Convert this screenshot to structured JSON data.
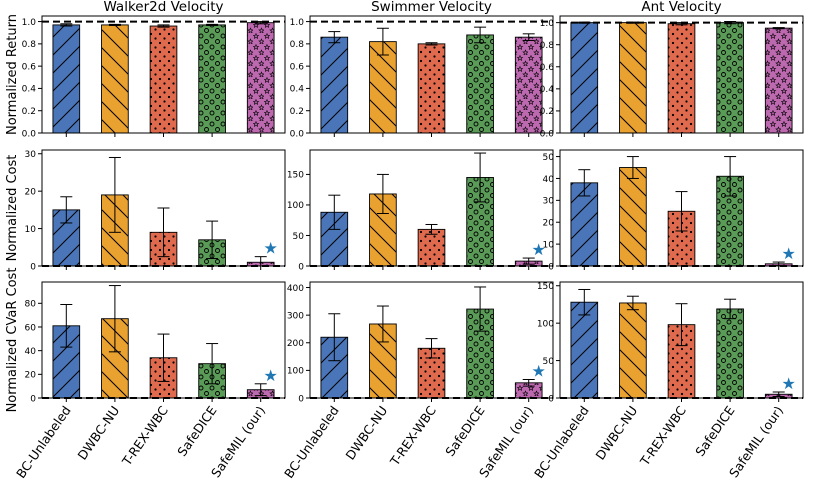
{
  "chart_data": {
    "type": "bar",
    "categories": [
      "BC-Unlabeled",
      "DWBC-NU",
      "T-REX-WBC",
      "SafeDICE",
      "SafeMIL (our)"
    ],
    "colors": [
      "#4a76b9",
      "#e9a130",
      "#df6a4e",
      "#5a9b58",
      "#bd69b0"
    ],
    "hatch_names": [
      "diagonal",
      "back-diagonal",
      "dots",
      "circles",
      "stars"
    ],
    "row_labels": [
      "Normalized Return",
      "Normalized Cost",
      "Normalized CVaR Cost"
    ],
    "marker": "★",
    "panels": [
      {
        "row": 0,
        "col": 0,
        "title": "Walker2d Velocity",
        "ylim": [
          0,
          1.05
        ],
        "ticks": [
          "0.0",
          "0.2",
          "0.4",
          "0.6",
          "0.8",
          "1.0"
        ],
        "tick_values": [
          0,
          0.2,
          0.4,
          0.6,
          0.8,
          1.0
        ],
        "values": [
          0.97,
          0.97,
          0.96,
          0.97,
          0.99
        ],
        "errors": [
          0.01,
          0.005,
          0.01,
          0.005,
          0.01
        ],
        "reference": 1.0,
        "best": -1
      },
      {
        "row": 0,
        "col": 1,
        "title": "Swimmer Velocity",
        "ylim": [
          0,
          1.05
        ],
        "ticks": [
          "0.0",
          "0.2",
          "0.4",
          "0.6",
          "0.8",
          "1.0"
        ],
        "tick_values": [
          0,
          0.2,
          0.4,
          0.6,
          0.8,
          1.0
        ],
        "values": [
          0.86,
          0.82,
          0.8,
          0.88,
          0.86
        ],
        "errors": [
          0.05,
          0.12,
          0.01,
          0.07,
          0.03
        ],
        "reference": 1.0,
        "best": -1
      },
      {
        "row": 0,
        "col": 2,
        "title": "Ant Velocity",
        "ylim": [
          0,
          1.06
        ],
        "ticks": [
          "0.0",
          "0.2",
          "0.4",
          "0.6",
          "0.8",
          "1.0"
        ],
        "tick_values": [
          0,
          0.2,
          0.4,
          0.6,
          0.8,
          1.0
        ],
        "values": [
          1.0,
          1.0,
          0.99,
          1.0,
          0.95
        ],
        "errors": [
          0.005,
          0.005,
          0.01,
          0.01,
          0.005
        ],
        "reference": 1.0,
        "best": -1
      },
      {
        "row": 1,
        "col": 0,
        "title": "",
        "ylim": [
          0,
          31
        ],
        "ticks": [
          "0",
          "10",
          "20",
          "30"
        ],
        "tick_values": [
          0,
          10,
          20,
          30
        ],
        "values": [
          15,
          19,
          9,
          7,
          1
        ],
        "errors": [
          3.5,
          10,
          6.5,
          5,
          1.5
        ],
        "reference": 0,
        "best": 4
      },
      {
        "row": 1,
        "col": 1,
        "title": "",
        "ylim": [
          0,
          190
        ],
        "ticks": [
          "0",
          "50",
          "100",
          "150"
        ],
        "tick_values": [
          0,
          50,
          100,
          150
        ],
        "values": [
          88,
          118,
          60,
          145,
          8
        ],
        "errors": [
          28,
          32,
          8,
          40,
          5
        ],
        "reference": 0,
        "best": 4
      },
      {
        "row": 1,
        "col": 2,
        "title": "",
        "ylim": [
          0,
          53
        ],
        "ticks": [
          "0",
          "10",
          "20",
          "30",
          "40",
          "50"
        ],
        "tick_values": [
          0,
          10,
          20,
          30,
          40,
          50
        ],
        "values": [
          38,
          45,
          25,
          41,
          1
        ],
        "errors": [
          6,
          5,
          9,
          9,
          0.8
        ],
        "reference": 0,
        "best": 4
      },
      {
        "row": 2,
        "col": 0,
        "title": "",
        "ylim": [
          0,
          98
        ],
        "ticks": [
          "0",
          "20",
          "40",
          "60",
          "80"
        ],
        "tick_values": [
          0,
          20,
          40,
          60,
          80
        ],
        "values": [
          61,
          67,
          34,
          29,
          7
        ],
        "errors": [
          18,
          28,
          20,
          17,
          5
        ],
        "reference": 0,
        "best": 4
      },
      {
        "row": 2,
        "col": 1,
        "title": "",
        "ylim": [
          0,
          420
        ],
        "ticks": [
          "0",
          "100",
          "200",
          "300",
          "400"
        ],
        "tick_values": [
          0,
          100,
          200,
          300,
          400
        ],
        "values": [
          220,
          268,
          180,
          322,
          55
        ],
        "errors": [
          85,
          65,
          35,
          80,
          12
        ],
        "reference": 0,
        "best": 4
      },
      {
        "row": 2,
        "col": 2,
        "title": "",
        "ylim": [
          0,
          155
        ],
        "ticks": [
          "0",
          "50",
          "100",
          "150"
        ],
        "tick_values": [
          0,
          50,
          100,
          150
        ],
        "values": [
          128,
          127,
          98,
          119,
          5
        ],
        "errors": [
          17,
          9,
          28,
          13,
          3
        ],
        "reference": 0,
        "best": 4
      }
    ]
  }
}
